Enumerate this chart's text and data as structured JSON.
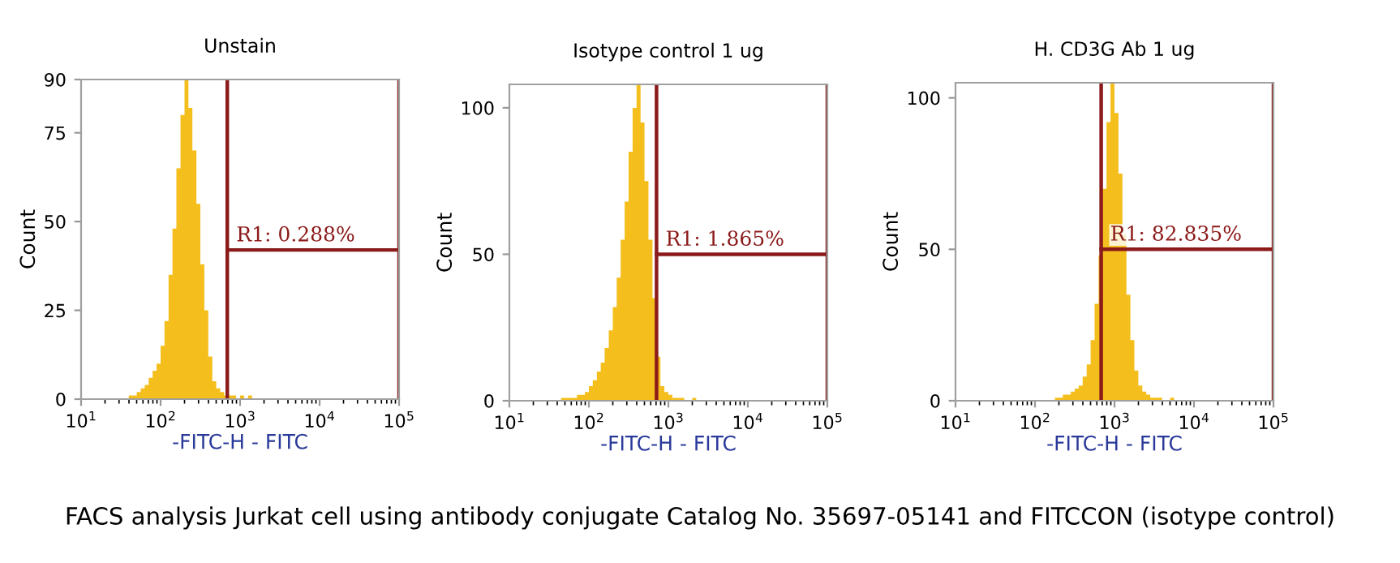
{
  "chart_data": [
    {
      "type": "histogram",
      "title": "Unstain",
      "xlabel": "-FITC-H - FITC",
      "ylabel": "Count",
      "log": "x",
      "color": "#f4be1c",
      "bins": [
        31.6,
        35.5,
        39.8,
        44.7,
        50.1,
        56.2,
        63.1,
        70.8,
        79.4,
        89.1,
        100,
        112,
        126,
        141,
        158,
        178,
        200,
        224,
        251,
        282,
        316,
        355,
        398,
        447,
        501,
        562,
        631,
        708,
        794,
        891,
        1000,
        1122,
        1259,
        1413,
        1585,
        1778
      ],
      "values": [
        0,
        0,
        1,
        1,
        2,
        3,
        4,
        6,
        8,
        10,
        15,
        22,
        35,
        48,
        65,
        80,
        90,
        82,
        70,
        55,
        38,
        25,
        12,
        5,
        3,
        2,
        1,
        1,
        1,
        0,
        1,
        0,
        1,
        0,
        0
      ],
      "xlim": [
        10,
        100000
      ],
      "xticks": [
        {
          "value": 10,
          "label": "10$^{1}$"
        },
        {
          "value": 100,
          "label": "10$^{2}$"
        },
        {
          "value": 1000,
          "label": "10$^{3}$"
        },
        {
          "value": 10000,
          "label": "10$^{4}$"
        },
        {
          "value": 100000,
          "label": "10$^{5}$"
        }
      ],
      "ylim": [
        0,
        90
      ],
      "yticks": [
        0,
        25,
        50,
        75,
        90
      ],
      "ref_lines": [
        {
          "axis": "x",
          "value": 690,
          "color": "#8b1a1a"
        },
        {
          "axis": "x",
          "value": 100000,
          "color": "#8b1a1a"
        }
      ],
      "annotations": [
        {
          "text": "R1: 0.288%",
          "x": 690,
          "y": 42
        },
        "FACS analysis Jurkat cell using antibody conjugate Catalog No. 35697-05141 and FITCCON (isotype control)"
      ]
    },
    {
      "type": "histogram",
      "title": "Isotype control 1 ug",
      "xlabel": "-FITC-H - FITC",
      "ylabel": "Count",
      "log": "x",
      "color": "#f4be1c",
      "bins": [
        39.8,
        44.7,
        50.1,
        56.2,
        63.1,
        70.8,
        79.4,
        89.1,
        100,
        112,
        126,
        141,
        158,
        178,
        200,
        224,
        251,
        282,
        316,
        355,
        398,
        447,
        501,
        562,
        631,
        708,
        794,
        891,
        1000,
        1122,
        1259,
        1413,
        1585,
        1778,
        1995,
        2239
      ],
      "values": [
        0,
        1,
        1,
        1,
        1,
        2,
        2,
        3,
        5,
        7,
        10,
        13,
        18,
        24,
        32,
        42,
        55,
        68,
        85,
        100,
        108,
        95,
        75,
        55,
        35,
        15,
        5,
        3,
        2,
        1,
        1,
        1,
        0,
        0,
        1
      ],
      "xlim": [
        10,
        100000
      ],
      "xticks": [
        {
          "value": 10,
          "label": "10$^{1}$"
        },
        {
          "value": 100,
          "label": "10$^{2}$"
        },
        {
          "value": 1000,
          "label": "10$^{3}$"
        },
        {
          "value": 10000,
          "label": "10$^{4}$"
        },
        {
          "value": 100000,
          "label": "10$^{5}$"
        }
      ],
      "ylim": [
        0,
        108
      ],
      "yticks": [
        0,
        50,
        100
      ],
      "ref_lines": [
        {
          "axis": "x",
          "value": 710,
          "color": "#8b1a1a"
        },
        {
          "axis": "x",
          "value": 100000,
          "color": "#8b1a1a"
        }
      ],
      "annotations": [
        {
          "text": "R1: 1.865%",
          "x": 710,
          "y": 50
        }
      ]
    },
    {
      "type": "histogram",
      "title": "H. CD3G Ab 1 ug",
      "xlabel": "-FITC-H - FITC",
      "ylabel": "Count",
      "log": "x",
      "color": "#f4be1c",
      "bins": [
        158,
        178,
        200,
        224,
        251,
        282,
        316,
        355,
        398,
        447,
        501,
        562,
        631,
        708,
        794,
        891,
        1000,
        1122,
        1259,
        1413,
        1585,
        1778,
        1995,
        2239,
        2512,
        2818,
        3162,
        3548,
        3981,
        4467,
        5012,
        5623,
        6310
      ],
      "values": [
        0,
        1,
        1,
        2,
        2,
        3,
        4,
        5,
        8,
        12,
        20,
        32,
        48,
        70,
        92,
        105,
        95,
        75,
        55,
        35,
        20,
        10,
        5,
        3,
        2,
        1,
        1,
        1,
        0,
        0,
        1,
        0
      ],
      "xlim": [
        10,
        100000
      ],
      "xticks": [
        {
          "value": 10,
          "label": "10$^{1}$"
        },
        {
          "value": 100,
          "label": "10$^{2}$"
        },
        {
          "value": 1000,
          "label": "10$^{3}$"
        },
        {
          "value": 10000,
          "label": "10$^{4}$"
        },
        {
          "value": 100000,
          "label": "10$^{5}$"
        }
      ],
      "ylim": [
        0,
        105
      ],
      "yticks": [
        0,
        50,
        100
      ],
      "ref_lines": [
        {
          "axis": "x",
          "value": 680,
          "color": "#8b1a1a"
        },
        {
          "axis": "x",
          "value": 100000,
          "color": "#8b1a1a"
        }
      ],
      "annotations": [
        {
          "text": "R1: 82.835%",
          "x": 680,
          "y": 50
        }
      ]
    }
  ]
}
